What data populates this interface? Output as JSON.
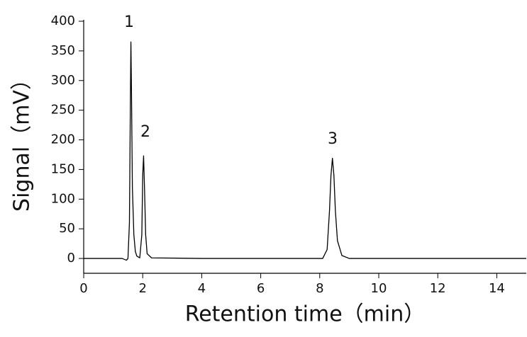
{
  "chart_data": {
    "type": "line",
    "x_label": "Retention time（min）",
    "y_label": "Signal（mV）",
    "annotations": [
      "1",
      "2",
      "3"
    ],
    "x": [
      0,
      1.3,
      1.45,
      1.5,
      1.55,
      1.58,
      1.6,
      1.62,
      1.65,
      1.7,
      1.75,
      1.8,
      1.9,
      1.97,
      2.0,
      2.03,
      2.06,
      2.1,
      2.15,
      2.3,
      4,
      7,
      8.1,
      8.25,
      8.33,
      8.38,
      8.43,
      8.48,
      8.53,
      8.6,
      8.75,
      9,
      12,
      15
    ],
    "series": [
      {
        "color": "#000000",
        "values": [
          0,
          0,
          -3,
          0,
          60,
          250,
          365,
          280,
          120,
          40,
          12,
          4,
          1,
          40,
          140,
          173,
          120,
          40,
          8,
          1,
          0,
          0,
          0,
          15,
          80,
          140,
          169,
          140,
          80,
          30,
          5,
          0,
          0,
          0
        ]
      }
    ],
    "xlim": [
      0,
      15
    ],
    "xticks": [
      0,
      2,
      4,
      6,
      8,
      10,
      12,
      14
    ],
    "ylim": [
      -25,
      400
    ],
    "yticks": [
      0,
      50,
      100,
      150,
      200,
      250,
      300,
      350,
      400
    ],
    "grid": false
  }
}
